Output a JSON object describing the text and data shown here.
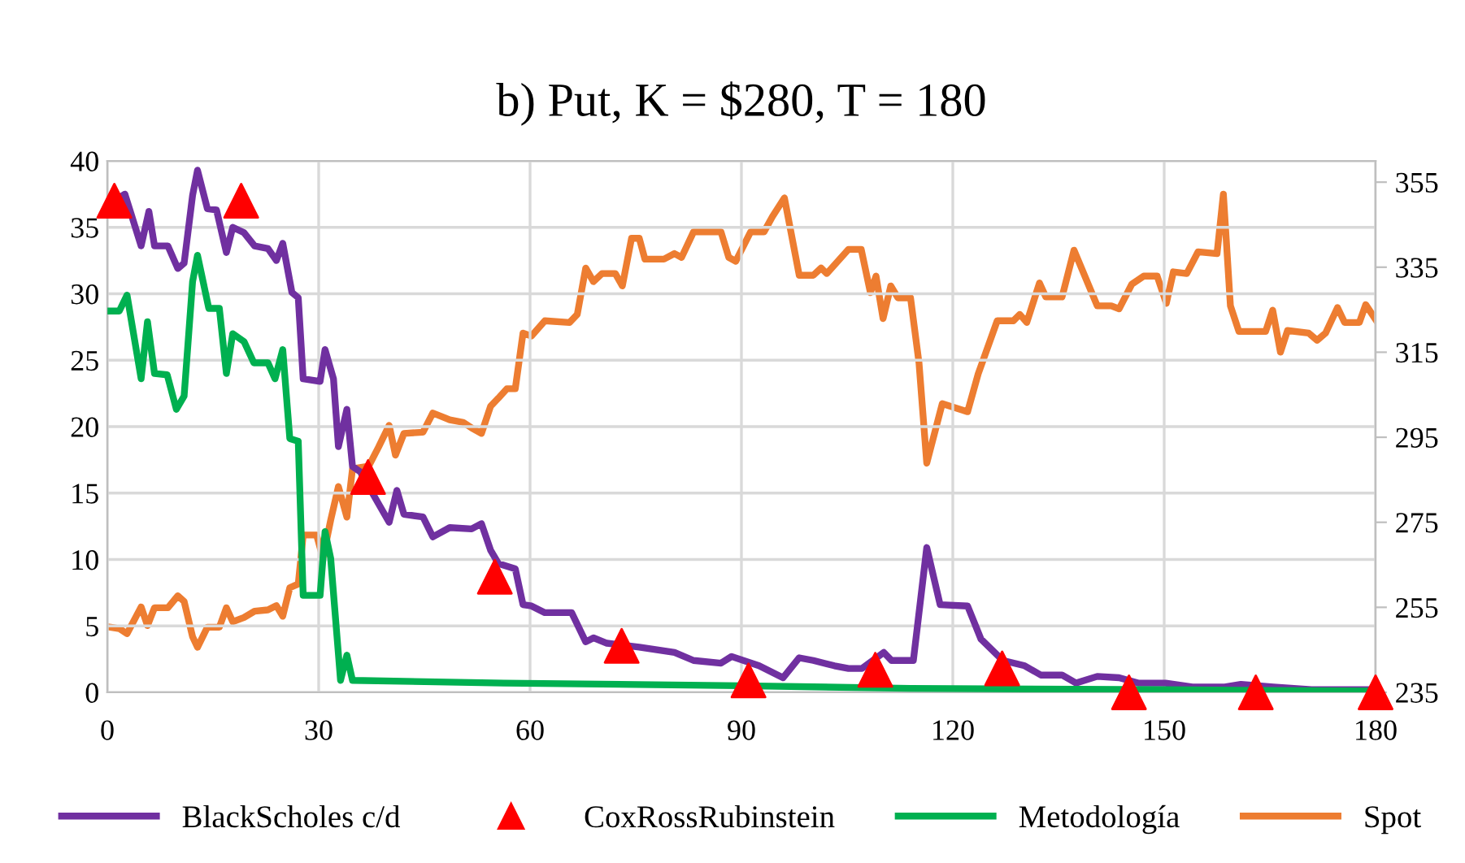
{
  "chart_data": {
    "type": "line",
    "title": "b) Put, K = $280, T = 180",
    "xlim": [
      0,
      180
    ],
    "xticks": [
      0,
      30,
      60,
      90,
      120,
      150,
      180
    ],
    "ylim": [
      0,
      40
    ],
    "yticks": [
      0,
      5,
      10,
      15,
      20,
      25,
      30,
      35,
      40
    ],
    "y2lim": [
      235,
      360
    ],
    "y2ticks": [
      235,
      255,
      275,
      295,
      315,
      335,
      355
    ],
    "grid": true,
    "legend": "bottom",
    "series": [
      {
        "name": "BlackScholes c/d",
        "color": "#7030a0",
        "x": [
          1,
          2.5,
          4.8,
          5.9,
          6.7,
          8.6,
          10.0,
          10.9,
          12.1,
          12.8,
          14.2,
          15.5,
          16.9,
          17.8,
          19.4,
          20.9,
          22.8,
          24.0,
          24.9,
          26.2,
          27.1,
          27.8,
          30.2,
          30.9,
          32.1,
          32.8,
          34.0,
          34.8,
          35.9,
          40.0,
          41.1,
          42.1,
          44.8,
          46.2,
          48.6,
          51.7,
          53.1,
          54.4,
          55.5,
          57.9,
          59.0,
          60.2,
          62.1,
          65.9,
          67.9,
          69.0,
          70.9,
          75.5,
          80.5,
          83.2,
          87.1,
          88.6,
          92.5,
          95.9,
          98.2,
          100.2,
          103.2,
          105.2,
          107.1,
          110.2,
          111.3,
          114.4,
          116.3,
          118.2,
          122.1,
          124.0,
          127.1,
          130.2,
          132.5,
          135.5,
          137.5,
          140.5,
          143.6,
          146.3,
          150.2,
          154.0,
          158.6,
          160.9,
          165.5,
          170.9,
          180
        ],
        "values": [
          37.0,
          37.5,
          33.6,
          36.2,
          33.6,
          33.6,
          31.9,
          32.3,
          37.4,
          39.3,
          36.4,
          36.3,
          33.1,
          35.0,
          34.6,
          33.6,
          33.4,
          32.5,
          33.8,
          30.1,
          29.7,
          23.6,
          23.4,
          25.8,
          23.6,
          18.5,
          21.3,
          17.0,
          16.6,
          12.8,
          15.2,
          13.4,
          13.2,
          11.7,
          12.4,
          12.3,
          12.7,
          10.7,
          9.7,
          9.3,
          6.6,
          6.5,
          6.0,
          6.0,
          3.8,
          4.1,
          3.7,
          3.4,
          3.0,
          2.4,
          2.2,
          2.7,
          2.0,
          1.1,
          2.6,
          2.4,
          2.0,
          1.8,
          1.8,
          3.0,
          2.4,
          2.4,
          10.9,
          6.6,
          6.5,
          4.0,
          2.4,
          2.0,
          1.3,
          1.3,
          0.7,
          1.2,
          1.1,
          0.7,
          0.7,
          0.4,
          0.4,
          0.6,
          0.4,
          0.2,
          0.2
        ]
      },
      {
        "name": "CoxRossRubinstein",
        "type": "scatter",
        "color": "#ff0000",
        "marker": "triangle",
        "x": [
          1,
          19,
          37,
          55,
          73,
          91,
          109,
          127,
          145,
          163,
          180
        ],
        "values": [
          37.0,
          37.0,
          16.2,
          8.7,
          3.5,
          0.9,
          1.7,
          1.8,
          0,
          0,
          0
        ]
      },
      {
        "name": "Metodología",
        "color": "#00b050",
        "x": [
          0.5,
          1.7,
          2.8,
          4.8,
          5.7,
          6.7,
          8.5,
          9.8,
          10.9,
          12.1,
          12.8,
          14.4,
          15.9,
          16.9,
          17.8,
          19.4,
          20.8,
          22.8,
          23.8,
          24.9,
          25.9,
          27.1,
          27.8,
          30.2,
          30.9,
          31.7,
          33.1,
          34.0,
          34.8,
          56.3,
          90,
          114,
          150,
          180
        ],
        "values": [
          28.7,
          28.7,
          29.9,
          23.6,
          27.9,
          24.0,
          23.9,
          21.3,
          22.3,
          30.9,
          32.9,
          28.9,
          28.9,
          24.0,
          27.0,
          26.4,
          24.8,
          24.8,
          23.6,
          25.8,
          19.1,
          18.9,
          7.3,
          7.3,
          12.1,
          10.1,
          0.9,
          2.8,
          0.9,
          0.7,
          0.5,
          0.3,
          0.2,
          0.1
        ]
      },
      {
        "name": "Spot",
        "axis": "y2",
        "color": "#ed7d31",
        "x": [
          0.5,
          1.7,
          2.8,
          4.8,
          5.7,
          6.7,
          8.6,
          10.0,
          10.9,
          12.1,
          12.8,
          14.2,
          15.9,
          16.9,
          17.8,
          19.4,
          20.9,
          22.8,
          24.0,
          24.9,
          25.9,
          27.1,
          27.8,
          29.7,
          30.6,
          31.7,
          32.8,
          34.0,
          34.8,
          37.1,
          38.5,
          40.0,
          40.9,
          42.1,
          44.8,
          46.2,
          48.6,
          50.5,
          51.7,
          53.1,
          54.4,
          55.5,
          56.7,
          57.9,
          59.0,
          60.2,
          62.1,
          65.6,
          66.7,
          67.9,
          69.0,
          70.2,
          72.1,
          73.1,
          74.4,
          75.5,
          76.3,
          79.0,
          80.5,
          81.5,
          83.2,
          87.1,
          88.2,
          89.2,
          91.3,
          93.2,
          94.4,
          96.1,
          98.2,
          100.2,
          101.3,
          102.1,
          105.2,
          107.0,
          108.3,
          109.1,
          110.1,
          111.2,
          112.2,
          114.0,
          115.2,
          116.3,
          118.5,
          122.1,
          123.6,
          126.3,
          128.6,
          129.5,
          130.5,
          132.3,
          133.2,
          135.5,
          137.2,
          140.5,
          142.5,
          143.6,
          145.4,
          147.1,
          149.0,
          150.3,
          151.3,
          153.2,
          154.8,
          157.5,
          158.4,
          159.4,
          160.6,
          164.4,
          165.4,
          166.5,
          167.5,
          170.5,
          171.7,
          172.9,
          174.6,
          175.6,
          177.7,
          178.6,
          180
        ],
        "values": [
          250.3,
          250.0,
          248.8,
          255.1,
          250.7,
          254.9,
          254.9,
          257.7,
          256.4,
          248.1,
          245.6,
          250.3,
          250.3,
          254.9,
          251.6,
          252.6,
          254.1,
          254.4,
          255.4,
          252.9,
          259.6,
          260.5,
          272.0,
          272.0,
          266.6,
          275.5,
          283.4,
          276.2,
          287.6,
          288.2,
          292.7,
          297.8,
          290.8,
          295.9,
          296.2,
          300.7,
          299.1,
          298.5,
          297.2,
          295.9,
          302.3,
          304.2,
          306.4,
          306.4,
          319.5,
          318.8,
          322.4,
          322.0,
          323.9,
          334.8,
          331.6,
          333.5,
          333.5,
          330.6,
          341.8,
          341.8,
          336.9,
          336.9,
          338.2,
          337.3,
          343.3,
          343.3,
          337.3,
          336.4,
          343.3,
          343.3,
          346.9,
          351.3,
          333.1,
          333.1,
          334.8,
          333.5,
          339.2,
          339.2,
          329.0,
          332.9,
          322.9,
          330.6,
          327.8,
          327.8,
          312.5,
          288.9,
          302.9,
          301.0,
          309.9,
          322.4,
          322.4,
          323.9,
          322.0,
          331.3,
          328.0,
          328.0,
          339.0,
          325.9,
          325.9,
          325.2,
          331.0,
          332.9,
          332.9,
          326.5,
          333.9,
          333.5,
          338.6,
          338.2,
          352.2,
          325.9,
          319.9,
          319.9,
          324.9,
          315.0,
          320.1,
          319.5,
          317.8,
          319.5,
          325.5,
          322.0,
          322.0,
          326.2,
          322.7
        ]
      }
    ]
  }
}
